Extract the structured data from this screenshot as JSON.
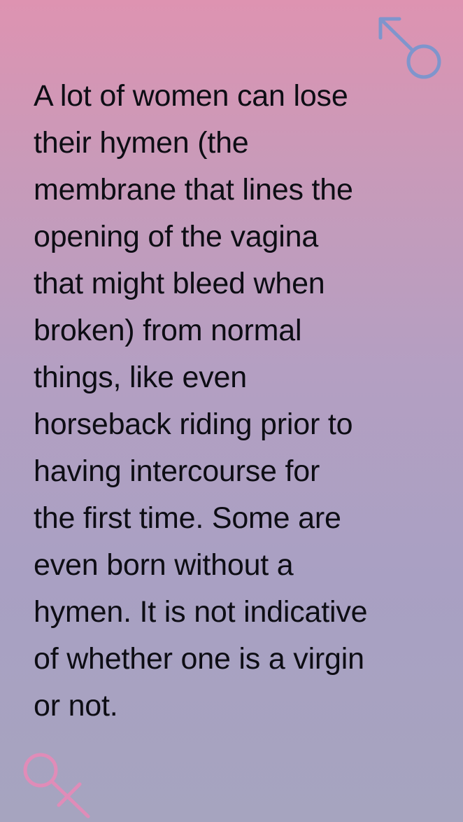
{
  "card": {
    "lines": [
      "A lot of women can lose",
      "their hymen (the",
      "membrane that lines the",
      "opening of the vagina",
      "that might bleed when",
      "broken) from normal",
      "things, like even",
      "horseback riding prior to",
      "having intercourse for",
      "the first time. Some are",
      "even born without a",
      "hymen. It is not indicative",
      "of whether one is a virgin",
      "or not."
    ]
  },
  "icons": {
    "top_right": "male-symbol-icon",
    "bottom_left": "female-symbol-icon"
  },
  "colors": {
    "gradient_top": "#de93b1",
    "gradient_bottom": "#a6a4bf",
    "male_symbol": "#7f95cc",
    "female_symbol": "#e08cb8",
    "text": "#0d0d14"
  }
}
